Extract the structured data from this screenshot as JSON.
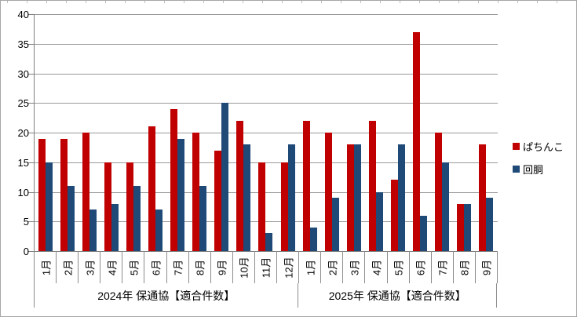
{
  "chart_data": {
    "type": "bar",
    "categories": [
      "1月",
      "2月",
      "3月",
      "4月",
      "5月",
      "6月",
      "7月",
      "8月",
      "9月",
      "10月",
      "11月",
      "12月",
      "1月",
      "2月",
      "3月",
      "4月",
      "5月",
      "6月",
      "7月",
      "8月",
      "9月"
    ],
    "group_labels": [
      "2024年 保通協【適合件数】",
      "2025年 保通協【適合件数】"
    ],
    "group_sizes": [
      12,
      9
    ],
    "series": [
      {
        "name": "ぱちんこ",
        "color": "#C00000",
        "values": [
          19,
          19,
          20,
          15,
          15,
          21,
          24,
          20,
          17,
          22,
          15,
          15,
          22,
          20,
          18,
          22,
          12,
          37,
          20,
          8,
          18
        ]
      },
      {
        "name": "回胴",
        "color": "#1F4977",
        "values": [
          15,
          11,
          7,
          8,
          11,
          7,
          19,
          11,
          25,
          18,
          3,
          18,
          4,
          9,
          18,
          10,
          18,
          6,
          15,
          8,
          9
        ]
      }
    ],
    "ylim": [
      0,
      40
    ],
    "yticks": [
      0,
      5,
      10,
      15,
      20,
      25,
      30,
      35,
      40
    ],
    "grid": true,
    "legend_position": "right"
  },
  "colors": {
    "gridline": "#999999",
    "axis": "#7F7F7F",
    "border": "#A6A6A6"
  }
}
